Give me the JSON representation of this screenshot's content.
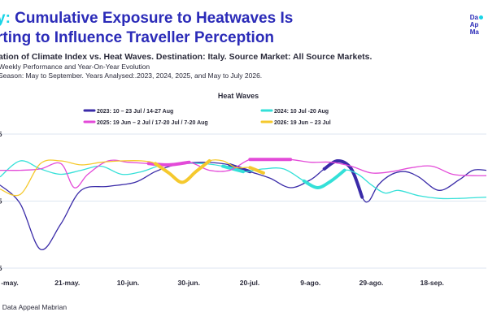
{
  "header": {
    "title_accent": "y:",
    "title_main": " Cumulative Exposure to Heatwaves Is",
    "title_line2": "rting to Influence Traveller Perception",
    "subtitle1": "ation of Climate Index vs. Heat Waves. Destination: Italy. Source Market: All Source Markets.",
    "subtitle2": "Weekly Performance and Year-On-Year Evolution",
    "subtitle3": "Season: May to September. Years Analysed:.2023, 2024, 2025, and May to July 2026."
  },
  "logo": {
    "line1": "Da",
    "line2": "Ap",
    "line3": "Ma"
  },
  "source": ": Data Appeal Mabrian",
  "colors": {
    "2023": "#3a2ba8",
    "2024": "#34e0d8",
    "2025": "#e34ad8",
    "2026": "#f5c92e",
    "grid": "#dde6f0"
  },
  "chart_data": {
    "type": "line",
    "legend_title": "Heat Waves",
    "legend_placement": "top",
    "x_ticks": [
      "-may.",
      "21-may.",
      "10-jun.",
      "30-jun.",
      "20-jul.",
      "9-ago.",
      "29-ago.",
      "18-sep."
    ],
    "y_tick_labels": [
      "5",
      "5",
      "5"
    ],
    "grid": true,
    "series": [
      {
        "name": "2023: 10 – 23 Jul / 14-27 Aug",
        "year": "2023",
        "points": [
          [
            0,
            62
          ],
          [
            1.5,
            48
          ],
          [
            3,
            14
          ],
          [
            4.5,
            33
          ],
          [
            6,
            58
          ],
          [
            8,
            61
          ],
          [
            10,
            64
          ],
          [
            11.5,
            72
          ],
          [
            13,
            77
          ],
          [
            15,
            79
          ],
          [
            17,
            77
          ],
          [
            18.5,
            72
          ],
          [
            20,
            67
          ],
          [
            21.5,
            60
          ],
          [
            23,
            66
          ],
          [
            24,
            74
          ],
          [
            25,
            80
          ],
          [
            26,
            74
          ],
          [
            26.8,
            53
          ],
          [
            27.3,
            50
          ],
          [
            28,
            62
          ],
          [
            29,
            70
          ],
          [
            30,
            72
          ],
          [
            31,
            68
          ],
          [
            32.5,
            58
          ],
          [
            34,
            66
          ],
          [
            35,
            73
          ],
          [
            36,
            73
          ]
        ],
        "bold_ranges": [
          [
            16.5,
            18.5
          ],
          [
            24,
            26.8
          ]
        ]
      },
      {
        "name": "2024: 10 Jul -20 Aug",
        "year": "2024",
        "points": [
          [
            0,
            68
          ],
          [
            1.5,
            80
          ],
          [
            3,
            74
          ],
          [
            4.5,
            70
          ],
          [
            6,
            73
          ],
          [
            7.5,
            76
          ],
          [
            9,
            70
          ],
          [
            10.5,
            72
          ],
          [
            12,
            77
          ],
          [
            13.5,
            78
          ],
          [
            15,
            78
          ],
          [
            16.5,
            76
          ],
          [
            18,
            72
          ],
          [
            19.5,
            74
          ],
          [
            21,
            74
          ],
          [
            22.5,
            65
          ],
          [
            23.5,
            60
          ],
          [
            24.5,
            65
          ],
          [
            25.5,
            73
          ],
          [
            26.5,
            70
          ],
          [
            27.5,
            62
          ],
          [
            28.5,
            56
          ],
          [
            29.5,
            58
          ],
          [
            31,
            54
          ],
          [
            32.5,
            52
          ],
          [
            34,
            52
          ],
          [
            36,
            53
          ]
        ],
        "bold_ranges": [
          [
            16.5,
            18.5
          ],
          [
            22,
            25.8
          ]
        ]
      },
      {
        "name": "2025: 19 Jun – 2 Jul / 17-20 Jul / 7-20 Aug",
        "year": "2025",
        "points": [
          [
            0,
            73
          ],
          [
            1.5,
            73
          ],
          [
            3,
            74
          ],
          [
            4.5,
            78
          ],
          [
            5.5,
            60
          ],
          [
            6.5,
            70
          ],
          [
            8,
            80
          ],
          [
            9.5,
            79
          ],
          [
            11,
            78
          ],
          [
            12.5,
            77
          ],
          [
            14,
            79
          ],
          [
            15.5,
            73
          ],
          [
            17,
            73
          ],
          [
            18.5,
            81
          ],
          [
            20,
            81
          ],
          [
            21.5,
            81
          ],
          [
            23,
            79
          ],
          [
            24.5,
            79
          ],
          [
            26,
            76
          ],
          [
            27.5,
            71
          ],
          [
            29,
            72
          ],
          [
            30.5,
            75
          ],
          [
            32,
            76
          ],
          [
            33.5,
            70
          ],
          [
            35,
            69
          ],
          [
            36,
            69
          ]
        ],
        "bold_ranges": [
          [
            11,
            14
          ],
          [
            18.5,
            21.5
          ]
        ]
      },
      {
        "name": "2026: 19 Jun – 23 Jul",
        "year": "2026",
        "points": [
          [
            0,
            59
          ],
          [
            1.5,
            55
          ],
          [
            3,
            78
          ],
          [
            4.5,
            80
          ],
          [
            6,
            77
          ],
          [
            7.5,
            79
          ],
          [
            9,
            80
          ],
          [
            10.5,
            80
          ],
          [
            11.5,
            78
          ],
          [
            12.5,
            71
          ],
          [
            13.5,
            64
          ],
          [
            14.5,
            72
          ],
          [
            15.5,
            80
          ],
          [
            16.5,
            80
          ],
          [
            17.5,
            75
          ],
          [
            18.5,
            75
          ],
          [
            19.5,
            71
          ]
        ],
        "bold_ranges": [
          [
            11.5,
            15.5
          ],
          [
            18.5,
            19.5
          ]
        ]
      }
    ]
  }
}
